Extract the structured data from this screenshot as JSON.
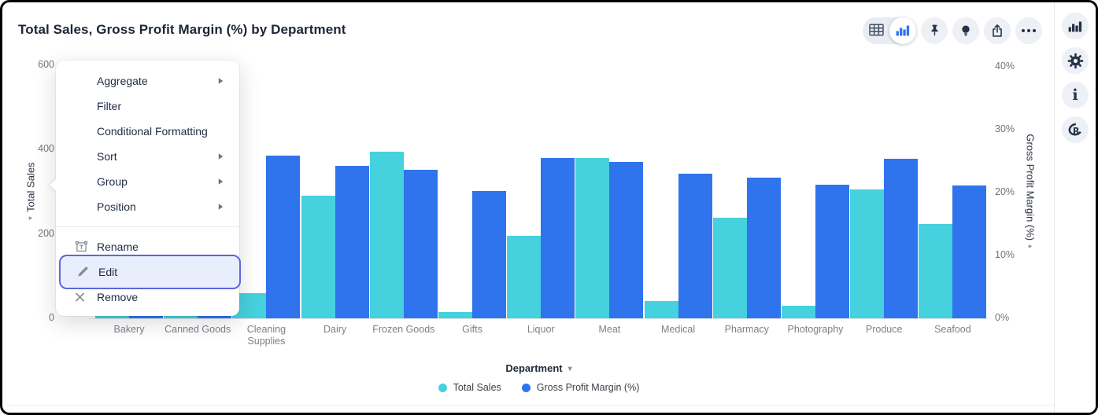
{
  "header": {
    "title": "Total Sales, Gross Profit Margin (%) by Department",
    "view_toggle": {
      "options": [
        {
          "icon": "table-view",
          "selected": false
        },
        {
          "icon": "chart-view",
          "selected": true
        }
      ]
    },
    "action_icons": [
      "pin",
      "bulb",
      "export",
      "more"
    ]
  },
  "right_toolbar": {
    "icons": [
      "chart-type",
      "settings",
      "info",
      "r-logo"
    ]
  },
  "context_menu": {
    "sections": [
      {
        "items": [
          {
            "label": "Aggregate",
            "submenu": true
          },
          {
            "label": "Filter",
            "submenu": false
          },
          {
            "label": "Conditional Formatting",
            "submenu": false
          },
          {
            "label": "Sort",
            "submenu": true
          },
          {
            "label": "Group",
            "submenu": true
          },
          {
            "label": "Position",
            "submenu": true
          }
        ]
      },
      {
        "items": [
          {
            "label": "Rename",
            "icon": "rename",
            "highlighted": false
          },
          {
            "label": "Edit",
            "icon": "edit",
            "highlighted": true
          },
          {
            "label": "Remove",
            "icon": "remove",
            "highlighted": false
          }
        ]
      }
    ]
  },
  "chart_data": {
    "type": "bar",
    "title": "Total Sales, Gross Profit Margin (%) by Department",
    "categories": [
      "Bakery",
      "Canned Goods",
      "Cleaning Supplies",
      "Dairy",
      "Frozen Goods",
      "Gifts",
      "Liquor",
      "Meat",
      "Medical",
      "Pharmacy",
      "Photography",
      "Produce",
      "Seafood"
    ],
    "series": [
      {
        "name": "Total Sales",
        "axis": "left",
        "color": "#45d1dd",
        "values": [
          170,
          190,
          60,
          290,
          395,
          15,
          196,
          380,
          41,
          239,
          30,
          305,
          224
        ]
      },
      {
        "name": "Gross Profit Margin (%)",
        "axis": "right",
        "color": "#2f74ec",
        "values": [
          22,
          23,
          25.9,
          24.3,
          23.6,
          20.3,
          25.5,
          24.9,
          23.0,
          22.4,
          21.3,
          25.4,
          21.1
        ]
      }
    ],
    "left_axis": {
      "title": "Total Sales",
      "ticks": [
        "600",
        "400",
        "200",
        "0"
      ],
      "max": 600
    },
    "right_axis": {
      "title": "Gross Profit Margin (%)",
      "ticks": [
        "40%",
        "30%",
        "20%",
        "10%",
        "0%"
      ],
      "max": 40
    },
    "xlabel": "Department",
    "legend": [
      "Total Sales",
      "Gross Profit Margin (%)"
    ],
    "legend_position": "bottom",
    "grid": false
  },
  "colors": {
    "teal": "#45d1dd",
    "blue": "#2f74ec",
    "highlight_ring": "#5b68de",
    "highlight_fill": "#e9eefc"
  }
}
